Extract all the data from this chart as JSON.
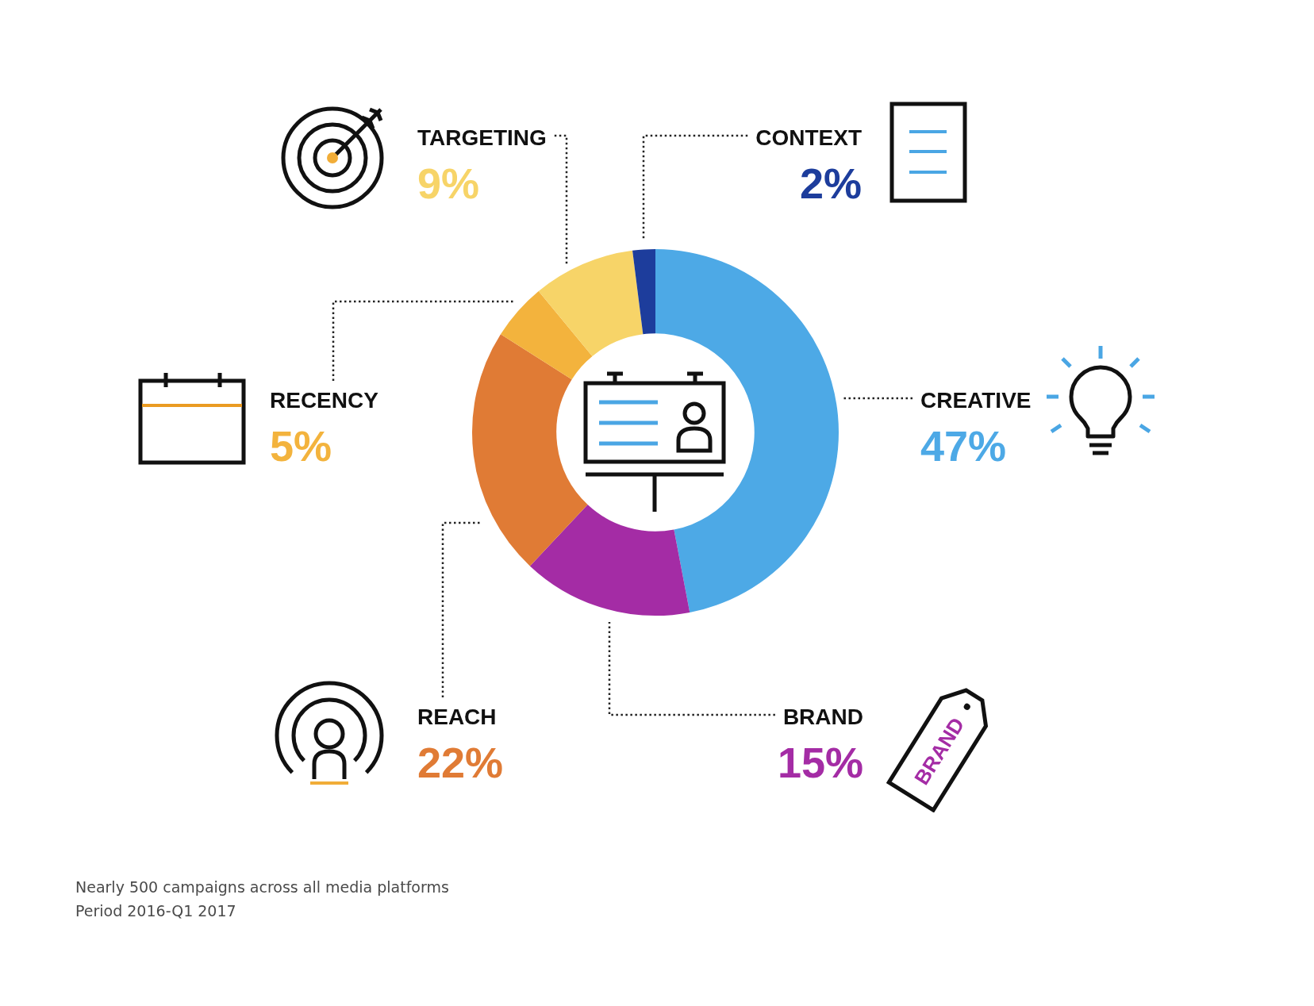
{
  "chart_data": {
    "type": "donut",
    "categories": [
      "CREATIVE",
      "BRAND",
      "REACH",
      "RECENCY",
      "TARGETING",
      "CONTEXT"
    ],
    "values": [
      47,
      15,
      22,
      5,
      9,
      2
    ],
    "colors": [
      "#4da9e6",
      "#a42ca5",
      "#e07b35",
      "#f3b33d",
      "#f7d468",
      "#1d3d9c"
    ],
    "value_labels": [
      "47%",
      "15%",
      "22%",
      "5%",
      "9%",
      "2%"
    ],
    "annotations": [
      "Nearly 500 campaigns across all media platforms",
      "Period 2016-Q1 2017",
      "BRAND"
    ]
  }
}
